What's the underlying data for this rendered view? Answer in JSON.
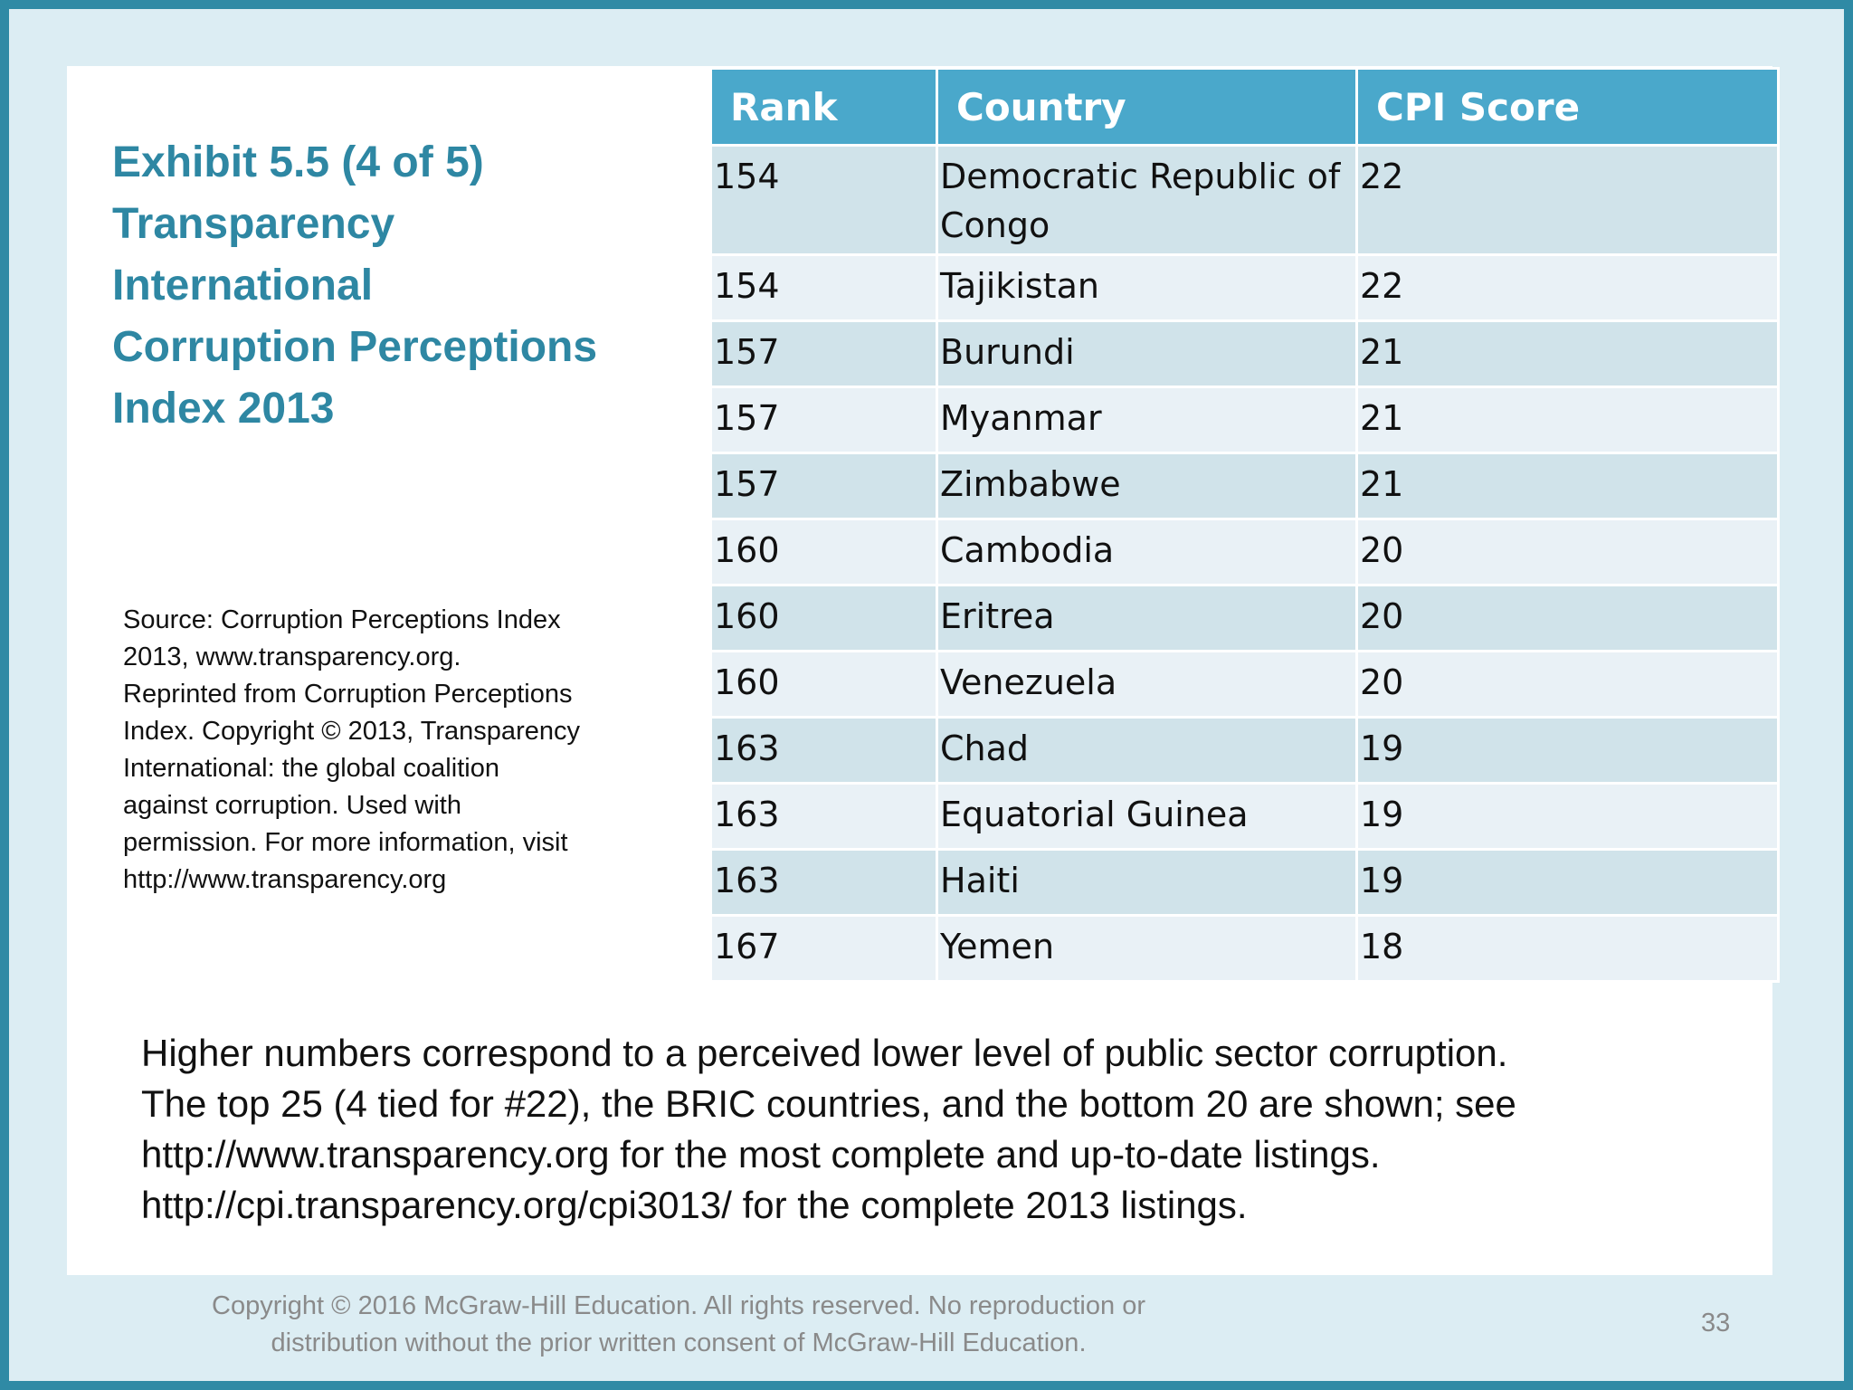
{
  "title": {
    "lines": [
      "Exhibit 5.5  (4 of 5)",
      "Transparency",
      "International",
      "Corruption Perceptions",
      "Index 2013"
    ]
  },
  "source": {
    "lines": [
      "Source: Corruption Perceptions Index",
      "2013, www.transparency.org.",
      "Reprinted from Corruption Perceptions",
      "Index. Copyright © 2013, Transparency",
      "International: the global coalition",
      "against corruption. Used with",
      "permission. For more information, visit",
      "http://www.transparency.org"
    ]
  },
  "table": {
    "headers": [
      "Rank",
      "Country",
      "CPI Score"
    ],
    "rows": [
      {
        "rank": "154",
        "country": "Democratic Republic of Congo",
        "score": "22"
      },
      {
        "rank": "154",
        "country": "Tajikistan",
        "score": "22"
      },
      {
        "rank": "157",
        "country": "Burundi",
        "score": "21"
      },
      {
        "rank": "157",
        "country": "Myanmar",
        "score": "21"
      },
      {
        "rank": "157",
        "country": "Zimbabwe",
        "score": "21"
      },
      {
        "rank": "160",
        "country": "Cambodia",
        "score": "20"
      },
      {
        "rank": "160",
        "country": "Eritrea",
        "score": "20"
      },
      {
        "rank": "160",
        "country": "Venezuela",
        "score": "20"
      },
      {
        "rank": "163",
        "country": "Chad",
        "score": "19"
      },
      {
        "rank": "163",
        "country": "Equatorial Guinea",
        "score": "19"
      },
      {
        "rank": "163",
        "country": "Haiti",
        "score": "19"
      },
      {
        "rank": "167",
        "country": "Yemen",
        "score": "18"
      }
    ]
  },
  "note": {
    "lines": [
      "Higher numbers correspond to a perceived lower level of public sector corruption.",
      "The top 25 (4 tied for #22), the BRIC countries, and the bottom 20 are shown; see",
      "http://www.transparency.org for the most complete and up-to-date listings.",
      "http://cpi.transparency.org/cpi3013/ for the complete 2013 listings."
    ]
  },
  "footer": {
    "copyright_lines": [
      "Copyright © 2016 McGraw-Hill Education. All rights reserved. No reproduction or",
      "distribution without the prior written consent of McGraw-Hill Education."
    ],
    "page_number": "33"
  },
  "colors": {
    "border": "#2f8aa5",
    "background": "#dcedf3",
    "title": "#2e87a3",
    "table_header": "#4aa8cb",
    "row_dark": "#d0e3ea",
    "row_light": "#e9f1f6"
  }
}
